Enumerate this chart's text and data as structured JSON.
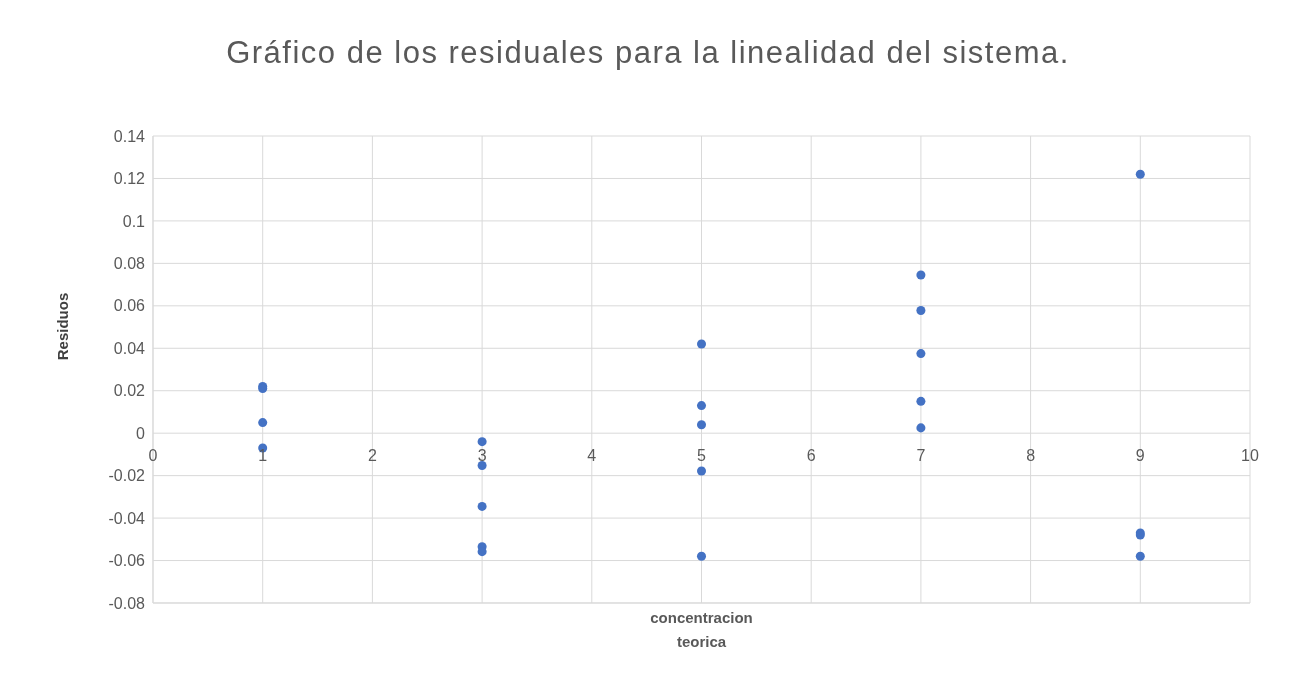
{
  "chart_data": {
    "type": "scatter",
    "title": "Gráfico de los residuales para la linealidad del sistema.",
    "xlabel": "concentracion teorica",
    "ylabel": "Residuos",
    "x": [
      1,
      1,
      1,
      1,
      3,
      3,
      3,
      3,
      3,
      5,
      5,
      5,
      5,
      5,
      7,
      7,
      7,
      7,
      7,
      9,
      9,
      9,
      9
    ],
    "values": [
      0.022,
      0.021,
      0.005,
      -0.007,
      -0.004,
      -0.0152,
      -0.0345,
      -0.0535,
      -0.0558,
      0.042,
      0.013,
      0.004,
      -0.0178,
      -0.058,
      0.0745,
      0.0578,
      0.0375,
      0.015,
      0.0025,
      0.122,
      -0.047,
      -0.048,
      -0.058
    ],
    "color": "#4472c4",
    "marker": "circle",
    "grid": true,
    "xlim": [
      0,
      10
    ],
    "xticks": [
      0,
      1,
      2,
      3,
      4,
      5,
      6,
      7,
      8,
      9,
      10
    ],
    "ylim": [
      -0.08,
      0.14
    ],
    "yticks": [
      -0.08,
      -0.06,
      -0.04,
      -0.02,
      0,
      0.02,
      0.04,
      0.06,
      0.08,
      0.1,
      0.12,
      0.14
    ]
  }
}
